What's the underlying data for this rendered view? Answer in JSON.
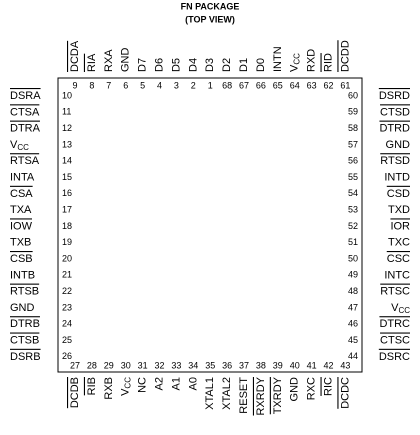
{
  "header": {
    "title": "FN PACKAGE",
    "subtitle": "(TOP VIEW)"
  },
  "pins": {
    "top": [
      {
        "number": 9,
        "label": "DCDA",
        "overbar": true
      },
      {
        "number": 8,
        "label": "RIA",
        "overbar": true
      },
      {
        "number": 7,
        "label": "RXA"
      },
      {
        "number": 6,
        "label": "GND"
      },
      {
        "number": 5,
        "label": "D7"
      },
      {
        "number": 4,
        "label": "D6"
      },
      {
        "number": 3,
        "label": "D5"
      },
      {
        "number": 2,
        "label": "D4"
      },
      {
        "number": 1,
        "label": "D3"
      },
      {
        "number": 68,
        "label": "D2"
      },
      {
        "number": 67,
        "label": "D1"
      },
      {
        "number": 66,
        "label": "D0"
      },
      {
        "number": 65,
        "label": "INTN"
      },
      {
        "number": 64,
        "label": "V",
        "sub": "CC"
      },
      {
        "number": 63,
        "label": "RXD"
      },
      {
        "number": 62,
        "label": "RID",
        "overbar": true
      },
      {
        "number": 61,
        "label": "DCDD",
        "overbar": true
      }
    ],
    "left": [
      {
        "number": 10,
        "label": "DSRA",
        "overbar": true
      },
      {
        "number": 11,
        "label": "CTSA",
        "overbar": true
      },
      {
        "number": 12,
        "label": "DTRA",
        "overbar": true
      },
      {
        "number": 13,
        "label": "V",
        "sub": "CC"
      },
      {
        "number": 14,
        "label": "RTSA",
        "overbar": true
      },
      {
        "number": 15,
        "label": "INTA"
      },
      {
        "number": 16,
        "label": "CSA",
        "overbar": true
      },
      {
        "number": 17,
        "label": "TXA"
      },
      {
        "number": 18,
        "label": "IOW",
        "overbar": true
      },
      {
        "number": 19,
        "label": "TXB"
      },
      {
        "number": 20,
        "label": "CSB",
        "overbar": true
      },
      {
        "number": 21,
        "label": "INTB"
      },
      {
        "number": 22,
        "label": "RTSB",
        "overbar": true
      },
      {
        "number": 23,
        "label": "GND"
      },
      {
        "number": 24,
        "label": "DTRB",
        "overbar": true
      },
      {
        "number": 25,
        "label": "CTSB",
        "overbar": true
      },
      {
        "number": 26,
        "label": "DSRB",
        "overbar": true
      }
    ],
    "right": [
      {
        "number": 60,
        "label": "DSRD",
        "overbar": true
      },
      {
        "number": 59,
        "label": "CTSD",
        "overbar": true
      },
      {
        "number": 58,
        "label": "DTRD",
        "overbar": true
      },
      {
        "number": 57,
        "label": "GND"
      },
      {
        "number": 56,
        "label": "RTSD",
        "overbar": true
      },
      {
        "number": 55,
        "label": "INTD"
      },
      {
        "number": 54,
        "label": "CSD",
        "overbar": true
      },
      {
        "number": 53,
        "label": "TXD"
      },
      {
        "number": 52,
        "label": "IOR",
        "overbar": true
      },
      {
        "number": 51,
        "label": "TXC"
      },
      {
        "number": 50,
        "label": "CSC",
        "overbar": true
      },
      {
        "number": 49,
        "label": "INTC"
      },
      {
        "number": 48,
        "label": "RTSC",
        "overbar": true
      },
      {
        "number": 47,
        "label": "V",
        "sub": "CC"
      },
      {
        "number": 46,
        "label": "DTRC",
        "overbar": true
      },
      {
        "number": 45,
        "label": "CTSC",
        "overbar": true
      },
      {
        "number": 44,
        "label": "DSRC",
        "overbar": true
      }
    ],
    "bottom": [
      {
        "number": 27,
        "label": "DCDB",
        "overbar": true
      },
      {
        "number": 28,
        "label": "RIB",
        "overbar": true
      },
      {
        "number": 29,
        "label": "RXB"
      },
      {
        "number": 30,
        "label": "V",
        "sub": "CC"
      },
      {
        "number": 31,
        "label": "NC"
      },
      {
        "number": 32,
        "label": "A2"
      },
      {
        "number": 33,
        "label": "A1"
      },
      {
        "number": 34,
        "label": "A0"
      },
      {
        "number": 35,
        "label": "XTAL1"
      },
      {
        "number": 36,
        "label": "XTAL2"
      },
      {
        "number": 37,
        "label": "RESET"
      },
      {
        "number": 38,
        "label": "RXRDY",
        "overbar": true
      },
      {
        "number": 39,
        "label": "TXRDY",
        "overbar": true
      },
      {
        "number": 40,
        "label": "GND"
      },
      {
        "number": 41,
        "label": "RXC"
      },
      {
        "number": 42,
        "label": "RIC",
        "overbar": true
      },
      {
        "number": 43,
        "label": "DCDC",
        "overbar": true
      }
    ]
  }
}
